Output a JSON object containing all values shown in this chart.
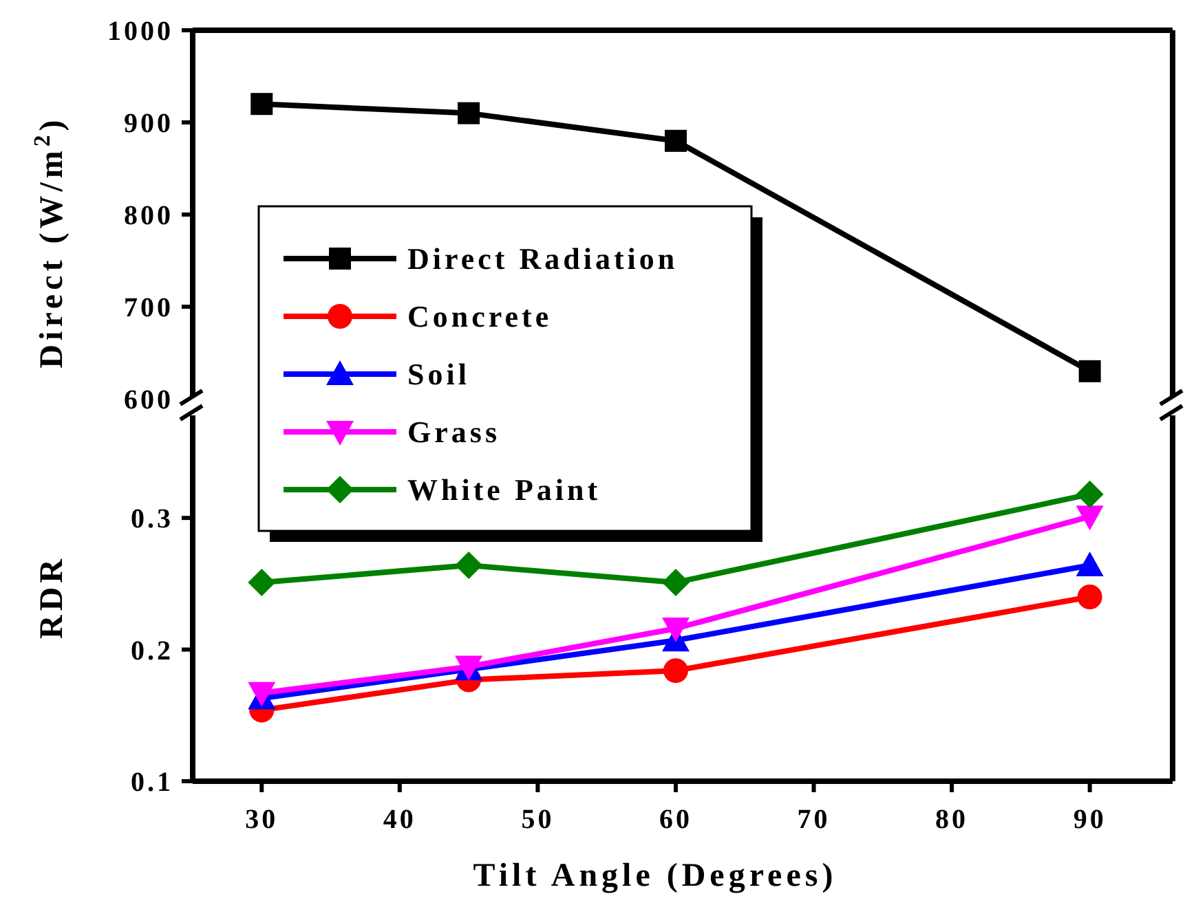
{
  "chart_data": [
    {
      "type": "line",
      "ylabel": "Direct (W/m$^{2}$)",
      "x": [
        30,
        45,
        60,
        90
      ],
      "xlim": [
        25,
        96
      ],
      "ylim": [
        600,
        1000
      ],
      "yticks": [
        600,
        700,
        800,
        900,
        1000
      ],
      "tick_labels": "y",
      "legend": "bottom left",
      "grid": false,
      "series": [
        {
          "name": "Direct Radiation",
          "color": "#000000",
          "marker": "square",
          "values": [
            920,
            910,
            880,
            630
          ]
        }
      ]
    },
    {
      "type": "line",
      "xlabel": "Tilt Angle (Degrees)",
      "ylabel": "RDR",
      "x": [
        30,
        45,
        60,
        90
      ],
      "xlim": [
        25,
        96
      ],
      "xticks": [
        30,
        40,
        50,
        60,
        70,
        80,
        90
      ],
      "ylim": [
        0.1,
        0.38
      ],
      "yticks": [
        0.1,
        0.2,
        0.3
      ],
      "legend": "top left",
      "grid": false,
      "series": [
        {
          "name": "Concrete",
          "color": "#ff0000",
          "marker": "circle",
          "values": [
            0.154,
            0.177,
            0.184,
            0.24
          ]
        },
        {
          "name": "Soil",
          "color": "#0000ff",
          "marker": "triangle",
          "values": [
            0.163,
            0.185,
            0.207,
            0.264
          ]
        },
        {
          "name": "Grass",
          "color": "#ff00ff",
          "marker": "triangle-down",
          "values": [
            0.167,
            0.187,
            0.216,
            0.301
          ]
        },
        {
          "name": "White Paint",
          "color": "#008000",
          "marker": "diamond",
          "values": [
            0.251,
            0.264,
            0.251,
            0.318
          ]
        }
      ]
    }
  ]
}
